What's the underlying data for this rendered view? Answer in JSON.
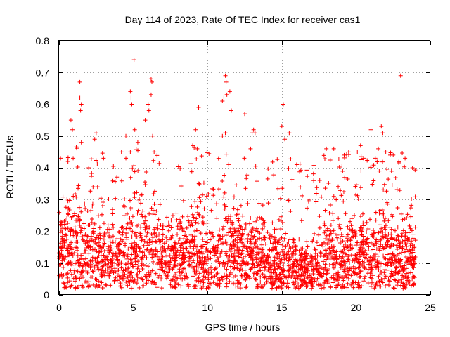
{
  "chart_data": {
    "type": "scatter",
    "title": "Day 114 of 2023, Rate Of TEC Index for receiver cas1",
    "xlabel": "GPS time / hours",
    "ylabel": "ROTI / TECUs",
    "xlim": [
      0,
      25
    ],
    "ylim": [
      0,
      0.8
    ],
    "x_ticks": [
      0,
      5,
      10,
      15,
      20,
      25
    ],
    "x_tick_labels": [
      "0",
      "5",
      "10",
      "15",
      "20",
      "25"
    ],
    "y_ticks": [
      0,
      0.1,
      0.2,
      0.3,
      0.4,
      0.5,
      0.6,
      0.7,
      0.8
    ],
    "y_tick_labels": [
      "0",
      "0.1",
      "0.2",
      "0.3",
      "0.4",
      "0.5",
      "0.6",
      "0.7",
      "0.8"
    ],
    "grid": true,
    "marker": "plus",
    "color": "#ff0000",
    "series": [
      {
        "name": "ROTI",
        "profile": {
          "x": [
            0,
            1,
            2,
            3,
            4,
            5,
            6,
            7,
            8,
            9,
            10,
            11,
            12,
            13,
            14,
            15,
            16,
            17,
            18,
            19,
            20,
            21,
            22,
            23,
            24
          ],
          "median": [
            0.14,
            0.15,
            0.13,
            0.12,
            0.12,
            0.13,
            0.14,
            0.12,
            0.12,
            0.13,
            0.12,
            0.14,
            0.13,
            0.12,
            0.1,
            0.1,
            0.09,
            0.08,
            0.12,
            0.12,
            0.12,
            0.11,
            0.12,
            0.11,
            0.12
          ],
          "spread": [
            0.08,
            0.1,
            0.08,
            0.07,
            0.07,
            0.09,
            0.1,
            0.08,
            0.07,
            0.08,
            0.08,
            0.09,
            0.08,
            0.07,
            0.06,
            0.07,
            0.05,
            0.05,
            0.08,
            0.08,
            0.08,
            0.07,
            0.08,
            0.07,
            0.08
          ]
        },
        "points": [
          [
            0.1,
            0.43
          ],
          [
            0.6,
            0.42
          ],
          [
            0.8,
            0.55
          ],
          [
            0.9,
            0.52
          ],
          [
            0.95,
            0.43
          ],
          [
            1.4,
            0.67
          ],
          [
            1.4,
            0.62
          ],
          [
            1.45,
            0.58
          ],
          [
            1.5,
            0.6
          ],
          [
            1.5,
            0.48
          ],
          [
            2.0,
            0.4
          ],
          [
            2.4,
            0.49
          ],
          [
            2.5,
            0.51
          ],
          [
            3.0,
            0.43
          ],
          [
            4.2,
            0.45
          ],
          [
            4.5,
            0.5
          ],
          [
            4.5,
            0.43
          ],
          [
            4.8,
            0.45
          ],
          [
            4.8,
            0.64
          ],
          [
            4.85,
            0.62
          ],
          [
            4.9,
            0.6
          ],
          [
            5.05,
            0.74
          ],
          [
            5.1,
            0.52
          ],
          [
            5.3,
            0.48
          ],
          [
            5.8,
            0.55
          ],
          [
            6.2,
            0.68
          ],
          [
            6.25,
            0.67
          ],
          [
            6.2,
            0.63
          ],
          [
            6.0,
            0.6
          ],
          [
            6.05,
            0.58
          ],
          [
            6.3,
            0.5
          ],
          [
            6.4,
            0.45
          ],
          [
            9.2,
            0.52
          ],
          [
            9.4,
            0.59
          ],
          [
            9.0,
            0.47
          ],
          [
            9.3,
            0.46
          ],
          [
            11.0,
            0.61
          ],
          [
            11.1,
            0.62
          ],
          [
            11.2,
            0.69
          ],
          [
            11.25,
            0.67
          ],
          [
            11.3,
            0.63
          ],
          [
            11.5,
            0.64
          ],
          [
            11.6,
            0.58
          ],
          [
            11.2,
            0.51
          ],
          [
            11.0,
            0.5
          ],
          [
            12.5,
            0.57
          ],
          [
            13.1,
            0.52
          ],
          [
            13.2,
            0.51
          ],
          [
            13.0,
            0.51
          ],
          [
            12.9,
            0.46
          ],
          [
            15.0,
            0.53
          ],
          [
            15.1,
            0.6
          ],
          [
            15.2,
            0.49
          ],
          [
            15.5,
            0.51
          ],
          [
            16.0,
            0.41
          ],
          [
            18.0,
            0.46
          ],
          [
            18.5,
            0.46
          ],
          [
            19.2,
            0.44
          ],
          [
            19.5,
            0.45
          ],
          [
            20.3,
            0.47
          ],
          [
            20.5,
            0.43
          ],
          [
            21.0,
            0.52
          ],
          [
            21.5,
            0.46
          ],
          [
            21.7,
            0.53
          ],
          [
            21.8,
            0.51
          ],
          [
            22.0,
            0.45
          ],
          [
            22.3,
            0.44
          ],
          [
            22.5,
            0.44
          ],
          [
            23.0,
            0.69
          ],
          [
            23.3,
            0.43
          ],
          [
            23.8,
            0.4
          ]
        ]
      }
    ]
  }
}
